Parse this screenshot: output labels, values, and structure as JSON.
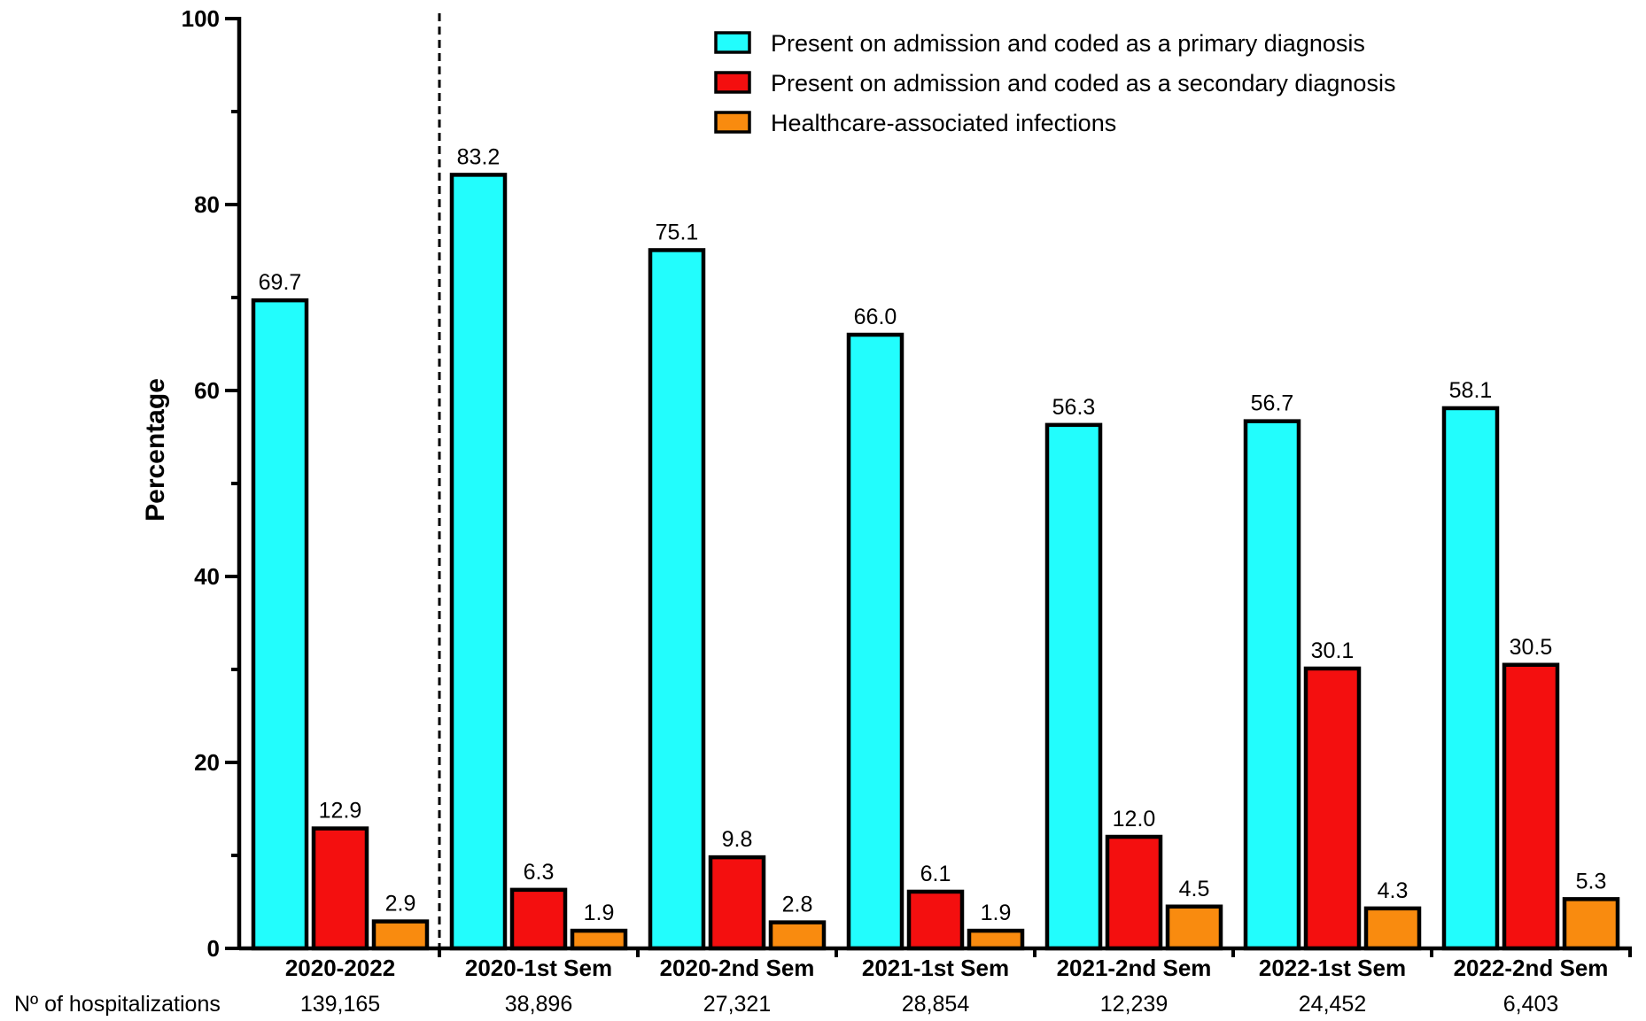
{
  "chart_data": {
    "type": "bar",
    "ylabel": "Percentage",
    "ylim": [
      0,
      100
    ],
    "yticks": [
      0,
      20,
      40,
      60,
      80,
      100
    ],
    "categories": [
      "2020-2022",
      "2020-1st Sem",
      "2020-2nd Sem",
      "2021-1st Sem",
      "2021-2nd Sem",
      "2022-1st Sem",
      "2022-2nd Sem"
    ],
    "series": [
      {
        "name": "Present on admission and coded as a primary diagnosis",
        "color": "#22fdfd",
        "values": [
          69.7,
          83.2,
          75.1,
          66.0,
          56.3,
          56.7,
          58.1
        ],
        "labels": [
          "69.7",
          "83.2",
          "75.1",
          "66.0",
          "56.3",
          "56.7",
          "58.1"
        ]
      },
      {
        "name": "Present on admission and coded as a secondary diagnosis",
        "color": "#f40f0f",
        "values": [
          12.9,
          6.3,
          9.8,
          6.1,
          12.0,
          30.1,
          30.5
        ],
        "labels": [
          "12.9",
          "6.3",
          "9.8",
          "6.1",
          "12.0",
          "30.1",
          "30.5"
        ]
      },
      {
        "name": "Healthcare-associated infections",
        "color": "#f98b0f",
        "values": [
          2.9,
          1.9,
          2.8,
          1.9,
          4.5,
          4.3,
          5.3
        ],
        "labels": [
          "2.9",
          "1.9",
          "2.8",
          "1.9",
          "4.5",
          "4.3",
          "5.3"
        ]
      }
    ],
    "hospitalizations": {
      "label": "Nº of hospitalizations",
      "values": [
        "139,165",
        "38,896",
        "27,321",
        "28,854",
        "12,239",
        "24,452",
        "6,403"
      ]
    },
    "separator_after_category": "2020-2022",
    "legend_position": "top-right",
    "grid": false
  }
}
